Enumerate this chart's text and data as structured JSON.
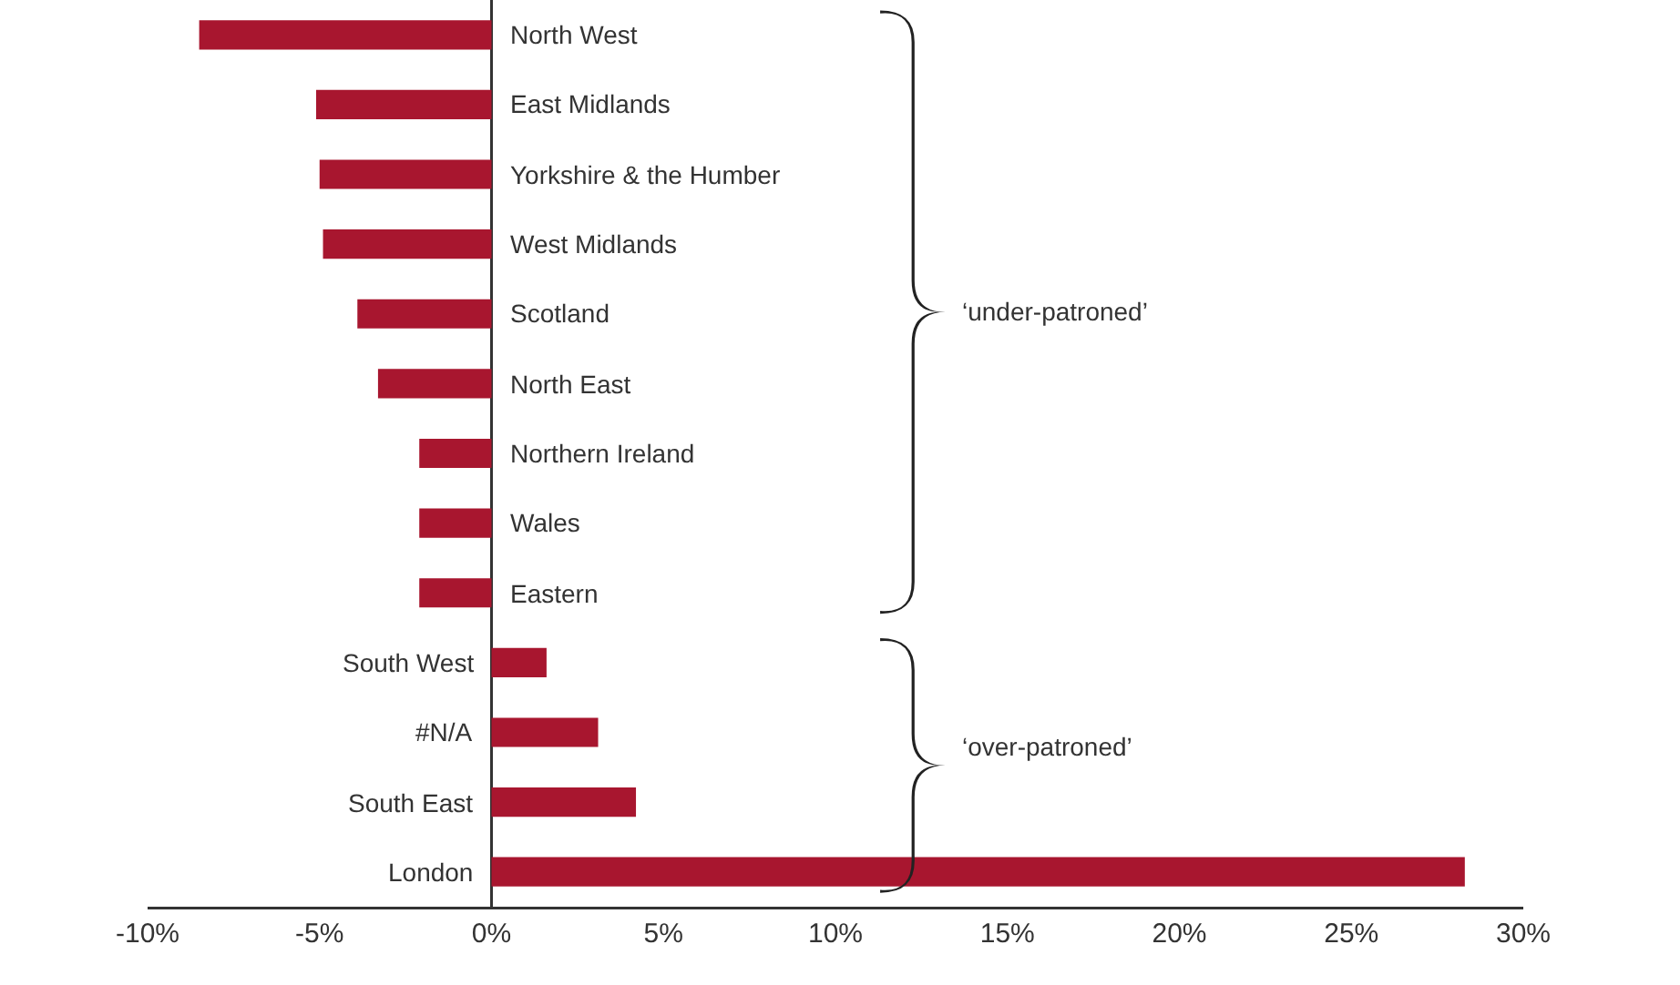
{
  "chart_data": {
    "type": "bar",
    "orientation": "horizontal",
    "categories": [
      "North West",
      "East Midlands",
      "Yorkshire & the Humber",
      "West Midlands",
      "Scotland",
      "North East",
      "Northern Ireland",
      "Wales",
      "Eastern",
      "South West",
      "#N/A",
      "South East",
      "London"
    ],
    "values": [
      -8.5,
      -5.1,
      -5.0,
      -4.9,
      -3.9,
      -3.3,
      -2.1,
      -2.1,
      -2.1,
      1.6,
      3.1,
      4.2,
      28.3
    ],
    "color": "#a8162f",
    "xlim": [
      -10,
      30
    ],
    "xticks": [
      {
        "value": -10,
        "label": "-10%"
      },
      {
        "value": -5,
        "label": "-5%"
      },
      {
        "value": 0,
        "label": "0%"
      },
      {
        "value": 5,
        "label": "5%"
      },
      {
        "value": 10,
        "label": "10%"
      },
      {
        "value": 15,
        "label": "15%"
      },
      {
        "value": 20,
        "label": "20%"
      },
      {
        "value": 25,
        "label": "25%"
      },
      {
        "value": 30,
        "label": "30%"
      }
    ],
    "annotations": [
      "‘under-patroned’",
      "‘over-patroned’"
    ],
    "grid": false,
    "legend": false
  }
}
